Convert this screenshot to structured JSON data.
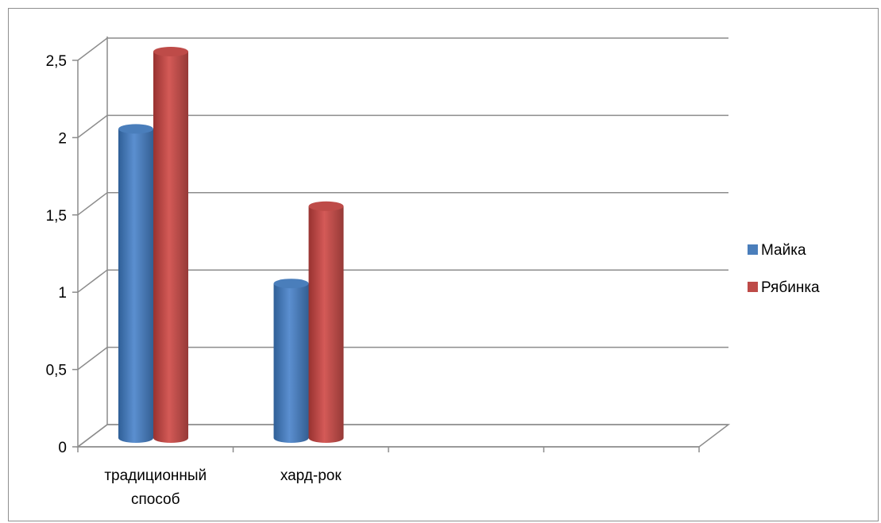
{
  "chart_data": {
    "type": "bar",
    "categories": [
      [
        "традиционный",
        "способ"
      ],
      [
        "хард-рок"
      ],
      [
        ""
      ],
      [
        ""
      ]
    ],
    "series": [
      {
        "name": "Майка",
        "values": [
          2,
          1,
          null,
          null
        ],
        "color": "#4a7ebb"
      },
      {
        "name": "Рябинка",
        "values": [
          2.5,
          1.5,
          null,
          null
        ],
        "color": "#be4b48"
      }
    ],
    "y_ticks": [
      "0",
      "0,5",
      "1",
      "1,5",
      "2",
      "2,5"
    ],
    "ylim": [
      0,
      2.5
    ],
    "grid": true,
    "legend_position": "right",
    "style": "3d-cylinder"
  }
}
